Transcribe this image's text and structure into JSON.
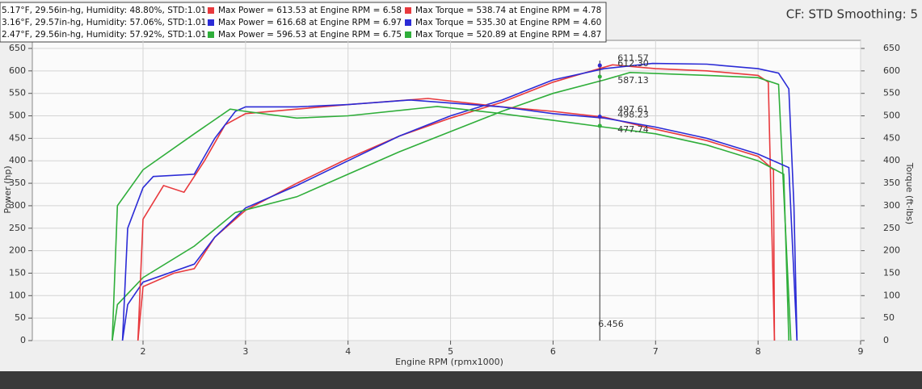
{
  "chart_data": {
    "type": "line",
    "title": "CF: STD Smoothing: 5",
    "x_label": "Engine RPM (rpmx1000)",
    "y_label": "Power (hp)",
    "y2_label": "Torque (ft-lbs)",
    "xlim": [
      0.92,
      9
    ],
    "xticks": [
      2,
      3,
      4,
      5,
      6,
      7,
      8,
      9
    ],
    "ylim": [
      0,
      650
    ],
    "yticks": [
      0,
      50,
      100,
      150,
      200,
      250,
      300,
      350,
      400,
      450,
      500,
      550,
      600,
      650
    ],
    "y2lim": [
      0,
      650
    ],
    "y2ticks": [
      0,
      50,
      100,
      150,
      200,
      250,
      300,
      350,
      400,
      450,
      500,
      550,
      600,
      650
    ],
    "grid": true,
    "legend": [
      {
        "conditions": "5.17°F, 29.56in-hg, Humidity: 48.80%, STD:1.01",
        "power": "Max Power = 613.53 at Engine RPM = 6.58",
        "torque": "Max Torque = 538.74 at Engine RPM = 4.78"
      },
      {
        "conditions": "3.16°F, 29.57in-hg, Humidity: 57.06%, STD:1.01",
        "power": "Max Power = 616.68 at Engine RPM = 6.97",
        "torque": "Max Torque = 535.30 at Engine RPM = 4.60"
      },
      {
        "conditions": "2.47°F, 29.56in-hg, Humidity: 57.92%, STD:1.01",
        "power": "Max Power = 596.53 at Engine RPM = 6.75",
        "torque": "Max Torque = 520.89 at Engine RPM = 4.87"
      }
    ],
    "series": [
      {
        "color": "#e8393d",
        "x": [
          1.95,
          2.0,
          2.3,
          2.5,
          2.7,
          3.0,
          3.5,
          4.0,
          4.5,
          5.0,
          5.5,
          6.0,
          6.3,
          6.58,
          7.0,
          7.5,
          8.0,
          8.1,
          8.16
        ],
        "values": [
          0,
          120,
          150,
          160,
          230,
          290,
          350,
          405,
          455,
          495,
          530,
          575,
          595,
          613.53,
          605,
          600,
          590,
          575,
          0
        ]
      },
      {
        "color": "#2b2bd6",
        "x": [
          1.8,
          1.85,
          2.0,
          2.5,
          2.7,
          3.0,
          3.5,
          4.0,
          4.5,
          5.0,
          5.5,
          6.0,
          6.5,
          6.97,
          7.5,
          8.0,
          8.2,
          8.3,
          8.35,
          8.38
        ],
        "values": [
          0,
          80,
          130,
          170,
          230,
          295,
          345,
          400,
          455,
          500,
          535,
          580,
          605,
          616.68,
          615,
          605,
          595,
          560,
          300,
          0
        ]
      },
      {
        "color": "#2fae3a",
        "x": [
          1.7,
          1.75,
          2.0,
          2.5,
          2.9,
          3.5,
          4.0,
          4.5,
          5.0,
          5.5,
          6.0,
          6.5,
          6.75,
          7.5,
          8.0,
          8.2,
          8.32
        ],
        "values": [
          0,
          80,
          140,
          210,
          285,
          320,
          370,
          420,
          465,
          510,
          550,
          580,
          596.53,
          590,
          585,
          570,
          0
        ]
      },
      {
        "color": "#e8393d",
        "axis": "y2",
        "x": [
          1.95,
          2.0,
          2.2,
          2.4,
          2.6,
          2.8,
          3.0,
          3.5,
          4.0,
          4.78,
          5.5,
          6.0,
          6.5,
          7.0,
          7.5,
          8.0,
          8.15,
          8.16
        ],
        "values": [
          0,
          270,
          345,
          330,
          400,
          480,
          505,
          515,
          525,
          538.74,
          520,
          510,
          497,
          470,
          445,
          410,
          380,
          0
        ]
      },
      {
        "color": "#2b2bd6",
        "axis": "y2",
        "x": [
          1.8,
          1.85,
          2.0,
          2.1,
          2.5,
          2.7,
          2.9,
          3.0,
          3.5,
          4.0,
          4.6,
          5.5,
          6.0,
          6.5,
          7.0,
          7.5,
          8.0,
          8.3,
          8.38
        ],
        "values": [
          0,
          250,
          340,
          365,
          370,
          450,
          510,
          520,
          520,
          525,
          535.3,
          520,
          505,
          495,
          475,
          450,
          415,
          385,
          0
        ]
      },
      {
        "color": "#2fae3a",
        "axis": "y2",
        "x": [
          1.7,
          1.75,
          2.0,
          2.5,
          2.85,
          3.0,
          3.5,
          4.0,
          4.87,
          5.5,
          6.0,
          6.5,
          7.0,
          7.5,
          8.0,
          8.25,
          8.3
        ],
        "values": [
          0,
          300,
          380,
          460,
          515,
          510,
          495,
          500,
          520.89,
          505,
          490,
          475,
          460,
          435,
          400,
          370,
          0
        ]
      }
    ],
    "cursor": {
      "x": 6.456,
      "readouts": [
        {
          "series": 0,
          "value": 611.57,
          "label": "611.57"
        },
        {
          "series": 1,
          "value": 612.3,
          "label": "612.30"
        },
        {
          "series": 2,
          "value": 587.13,
          "label": "587.13"
        },
        {
          "series": 3,
          "value": 497.61,
          "label": "497.61"
        },
        {
          "series": 4,
          "value": 498.23,
          "label": "498.23"
        },
        {
          "series": 5,
          "value": 477.74,
          "label": "477.74"
        }
      ]
    }
  }
}
